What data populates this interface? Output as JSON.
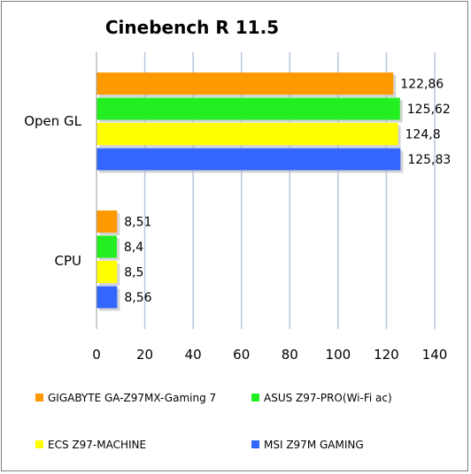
{
  "chart_data": {
    "type": "bar",
    "orientation": "horizontal",
    "title": "Cinebench R 11.5",
    "categories": [
      "Open GL",
      "CPU"
    ],
    "series": [
      {
        "name": "GIGABYTE GA-Z97MX-Gaming 7",
        "color": "#ff9900",
        "values": [
          122.86,
          8.51
        ],
        "labels": [
          "122,86",
          "8,51"
        ]
      },
      {
        "name": "ASUS Z97-PRO(Wi-Fi ac)",
        "color": "#22ee22",
        "values": [
          125.62,
          8.4
        ],
        "labels": [
          "125,62",
          "8,4"
        ]
      },
      {
        "name": "ECS Z97-MACHINE",
        "color": "#ffff00",
        "values": [
          124.8,
          8.5
        ],
        "labels": [
          "124,8",
          "8,5"
        ]
      },
      {
        "name": "MSI Z97M GAMING",
        "color": "#3366ff",
        "values": [
          125.83,
          8.56
        ],
        "labels": [
          "125,83",
          "8,56"
        ]
      }
    ],
    "xlim": [
      0,
      140
    ],
    "xticks": [
      0,
      20,
      40,
      60,
      80,
      100,
      120,
      140
    ],
    "grid": true,
    "gridline_color": "#b8c8e0",
    "legend_position": "bottom"
  }
}
